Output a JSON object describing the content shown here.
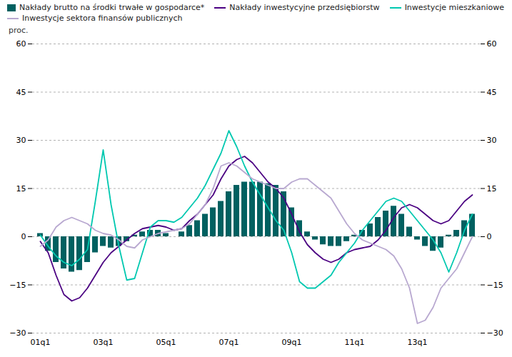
{
  "chart_data": {
    "type": "bar",
    "ylabel": "proc.",
    "categories": [
      "01q1",
      null,
      null,
      null,
      null,
      null,
      null,
      null,
      "03q1",
      null,
      null,
      null,
      null,
      null,
      null,
      null,
      "05q1",
      null,
      null,
      null,
      null,
      null,
      null,
      null,
      "07q1",
      null,
      null,
      null,
      null,
      null,
      null,
      null,
      "09q1",
      null,
      null,
      null,
      null,
      null,
      null,
      null,
      "11q1",
      null,
      null,
      null,
      null,
      null,
      null,
      null,
      "13q1",
      null,
      null,
      null,
      null,
      null,
      null,
      null
    ],
    "ylim": [
      -30,
      60
    ],
    "yticks": [
      -30,
      -15,
      0,
      15,
      30,
      45,
      60
    ],
    "y2lim": [
      -30,
      60
    ],
    "y2ticks": [
      -30,
      -15,
      0,
      15,
      30,
      45,
      60
    ],
    "grid": true,
    "legend": "upper left",
    "series": [
      {
        "name": "Nakłady brutto na środki trwałe w gospodarce*",
        "type": "bar",
        "color": "#006060",
        "values": [
          1.0,
          -4.5,
          -8.0,
          -10.0,
          -11.0,
          -10.5,
          -8.0,
          -5.0,
          -3.0,
          -3.5,
          -3.0,
          -1.5,
          0.5,
          1.5,
          2.0,
          2.0,
          1.0,
          0.0,
          1.5,
          3.5,
          5.0,
          7.0,
          9.0,
          11.0,
          14.0,
          16.0,
          17.0,
          17.0,
          17.0,
          16.5,
          16.0,
          14.0,
          9.0,
          5.0,
          1.5,
          -1.0,
          -2.5,
          -3.0,
          -3.0,
          -1.5,
          0.5,
          2.0,
          4.0,
          6.0,
          8.0,
          9.5,
          7.0,
          3.0,
          -1.0,
          -3.0,
          -4.5,
          -3.5,
          0.5,
          2.0,
          5.0,
          7.0
        ]
      },
      {
        "name": "Nakłady inwestycyjne przedsiębiorstw",
        "type": "line",
        "color": "#4B0082",
        "values": [
          -1.5,
          -5.0,
          -12.0,
          -18.0,
          -20.0,
          -19.0,
          -16.0,
          -12.0,
          -8.0,
          -5.0,
          -3.0,
          -1.0,
          1.0,
          2.5,
          3.0,
          3.5,
          3.0,
          2.0,
          2.5,
          5.0,
          7.0,
          10.0,
          13.0,
          18.0,
          22.0,
          24.0,
          25.0,
          23.0,
          20.0,
          17.0,
          15.0,
          12.0,
          7.0,
          1.5,
          -2.5,
          -5.0,
          -7.0,
          -8.0,
          -7.0,
          -5.0,
          -4.0,
          -3.5,
          -3.0,
          -1.0,
          2.0,
          6.0,
          9.0,
          10.0,
          9.0,
          7.0,
          5.0,
          4.0,
          5.0,
          8.0,
          11.0,
          13.0
        ]
      },
      {
        "name": "Inwestycje mieszkaniowe",
        "type": "line",
        "color": "#00C8B0",
        "values": [
          0.5,
          -3.0,
          -6.0,
          -8.0,
          -9.0,
          -7.0,
          -4.0,
          11.0,
          27.0,
          10.0,
          -3.0,
          -13.5,
          -13.0,
          -5.0,
          3.0,
          5.0,
          5.0,
          4.5,
          6.0,
          9.0,
          12.0,
          16.0,
          21.0,
          26.0,
          33.0,
          28.0,
          22.0,
          17.0,
          13.0,
          9.0,
          5.0,
          2.0,
          -5.0,
          -14.0,
          -16.0,
          -16.0,
          -14.0,
          -12.0,
          -8.0,
          -5.0,
          -2.0,
          2.0,
          5.0,
          8.0,
          11.0,
          12.0,
          11.0,
          8.0,
          5.0,
          2.0,
          -1.0,
          -5.0,
          -11.0,
          -5.0,
          2.0,
          7.0
        ]
      },
      {
        "name": "Inwestycje sektora finansów publicznych",
        "type": "line",
        "color": "#B8A8D0",
        "values": [
          -3.0,
          -1.0,
          3.0,
          5.0,
          6.0,
          5.0,
          4.0,
          2.0,
          1.0,
          0.5,
          -1.0,
          -3.0,
          -3.5,
          -1.0,
          0.0,
          1.0,
          1.5,
          2.0,
          2.5,
          4.0,
          7.0,
          10.0,
          15.0,
          22.0,
          23.0,
          22.0,
          20.0,
          18.0,
          17.0,
          16.0,
          15.0,
          15.0,
          17.0,
          18.0,
          18.0,
          16.0,
          14.0,
          12.0,
          8.0,
          4.0,
          1.0,
          -1.0,
          -2.0,
          -3.0,
          -4.0,
          -6.0,
          -10.0,
          -16.0,
          -27.0,
          -26.0,
          -22.0,
          -16.0,
          -13.0,
          -10.0,
          -5.0,
          0.0
        ]
      }
    ]
  }
}
